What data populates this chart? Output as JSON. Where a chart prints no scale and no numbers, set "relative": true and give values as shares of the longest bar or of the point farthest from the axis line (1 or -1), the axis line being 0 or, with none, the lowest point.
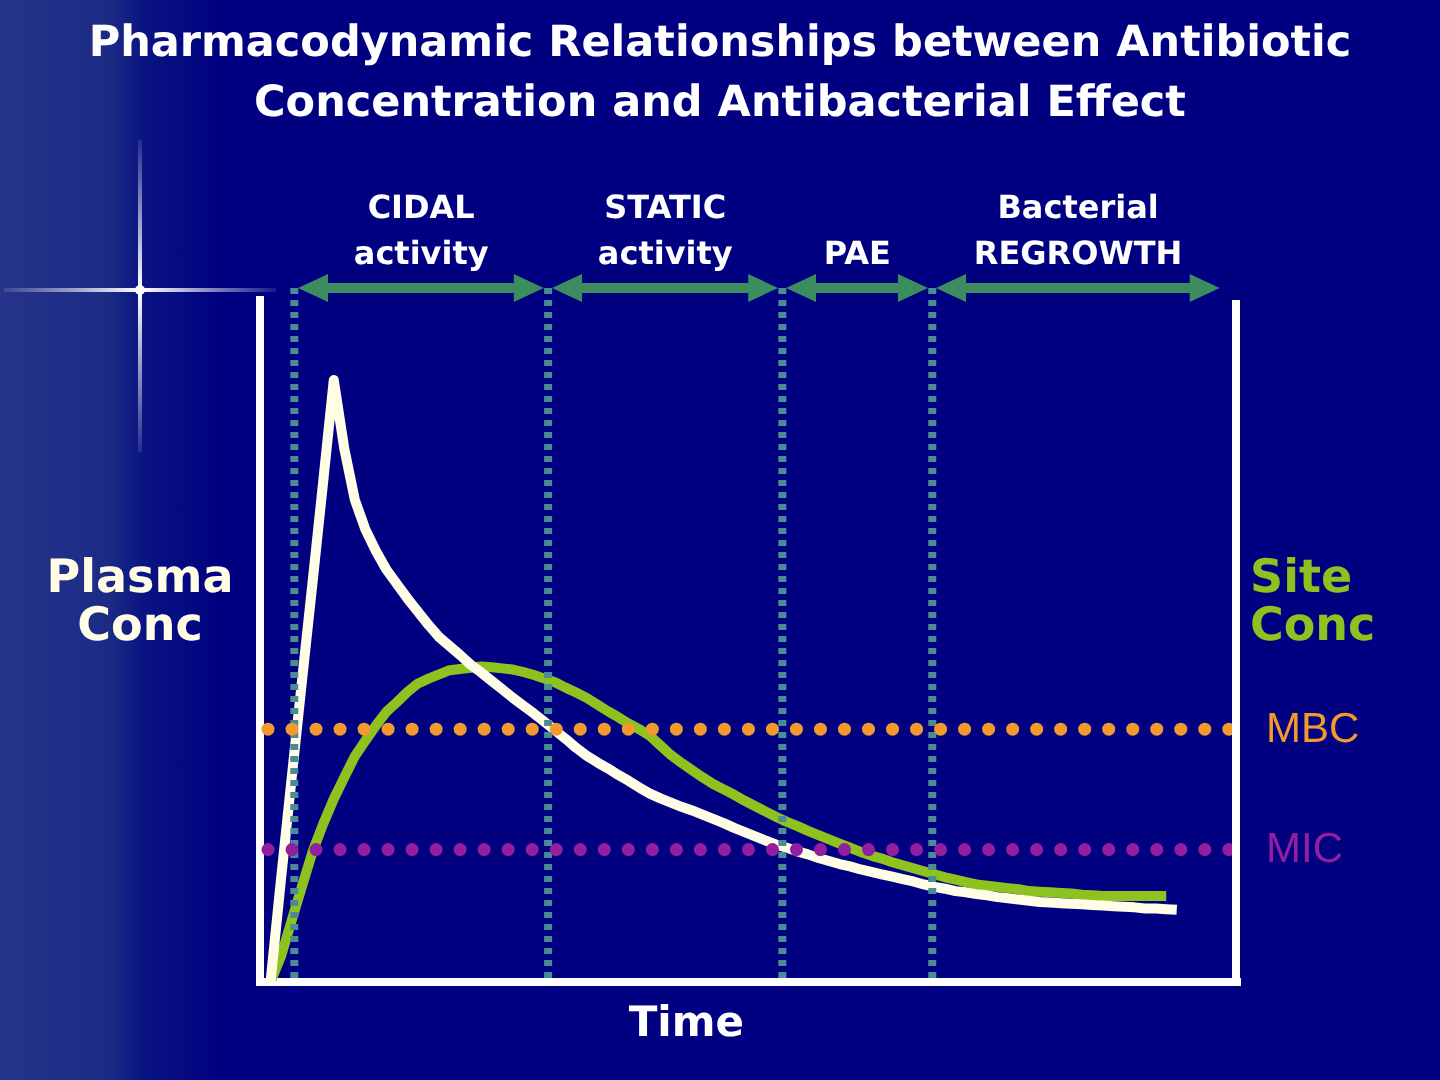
{
  "chart_data": {
    "type": "line",
    "title": "Pharmacodynamic Relationships between Antibiotic Concentration and Antibacterial Effect",
    "xlabel": "Time",
    "relative": true,
    "marker": "none",
    "categories": [
      null,
      null,
      null,
      null,
      null,
      null,
      null,
      null,
      null,
      null,
      null,
      null,
      null,
      null,
      null,
      null,
      null,
      null,
      null,
      null,
      null,
      null,
      null,
      null,
      null,
      null,
      null,
      null,
      null,
      null,
      null,
      null,
      null,
      null,
      null,
      null,
      null,
      null,
      null,
      null,
      null,
      null,
      null,
      null,
      null,
      null,
      null,
      null,
      null,
      null,
      null,
      null,
      null,
      null,
      null,
      null,
      null,
      null,
      null,
      null,
      null,
      null,
      null,
      null,
      null,
      null,
      null,
      null,
      null,
      null,
      null,
      null,
      null,
      null,
      null,
      null,
      null,
      null,
      null,
      null,
      null,
      null,
      null,
      null,
      null,
      null,
      null,
      null,
      null,
      null,
      null,
      null,
      null,
      null
    ],
    "series": [
      {
        "name": "Plasma Conc",
        "color": "#fffde6",
        "values": [
          null,
          0,
          0.172,
          0.338,
          0.503,
          0.666,
          0.832,
          1,
          0.886,
          0.801,
          0.752,
          0.716,
          0.685,
          0.661,
          0.637,
          0.615,
          0.593,
          0.573,
          0.558,
          0.543,
          0.527,
          0.514,
          0.5,
          0.486,
          0.472,
          0.459,
          0.446,
          0.432,
          0.418,
          0.404,
          0.389,
          0.376,
          0.365,
          0.355,
          0.344,
          0.334,
          0.323,
          0.313,
          0.305,
          0.298,
          0.291,
          0.285,
          0.278,
          0.271,
          0.264,
          0.256,
          0.249,
          0.242,
          0.235,
          0.228,
          0.223,
          0.217,
          0.212,
          0.206,
          0.201,
          0.196,
          0.192,
          0.187,
          0.183,
          0.179,
          0.175,
          0.171,
          0.167,
          0.162,
          0.158,
          0.155,
          0.151,
          0.149,
          0.146,
          0.144,
          0.141,
          0.139,
          0.137,
          0.135,
          0.133,
          0.132,
          0.131,
          0.13,
          0.129,
          0.128,
          0.127,
          0.126,
          0.125,
          0.124,
          0.122,
          0.122,
          0.121,
          0.12,
          null,
          null,
          null,
          null,
          null,
          null
        ]
      },
      {
        "name": "Site Conc",
        "color": "#8dc21f",
        "values": [
          null,
          0,
          0.043,
          0.102,
          0.16,
          0.217,
          0.263,
          0.304,
          0.34,
          0.375,
          0.401,
          0.426,
          0.449,
          0.465,
          0.482,
          0.496,
          0.504,
          0.511,
          0.518,
          0.52,
          0.522,
          0.524,
          0.523,
          0.521,
          0.519,
          0.515,
          0.51,
          0.504,
          0.498,
          0.489,
          0.481,
          0.472,
          0.461,
          0.45,
          0.44,
          0.429,
          0.42,
          0.409,
          0.393,
          0.377,
          0.364,
          0.352,
          0.34,
          0.329,
          0.32,
          0.311,
          0.301,
          0.292,
          0.283,
          0.274,
          0.266,
          0.259,
          0.251,
          0.244,
          0.237,
          0.23,
          0.223,
          0.216,
          0.21,
          0.205,
          0.199,
          0.194,
          0.189,
          0.184,
          0.179,
          0.174,
          0.17,
          0.166,
          0.162,
          0.16,
          0.158,
          0.156,
          0.154,
          0.151,
          0.15,
          0.149,
          0.148,
          0.147,
          0.145,
          0.144,
          0.143,
          0.143,
          0.143,
          0.143,
          0.143,
          0.143,
          0.143,
          null,
          null,
          null,
          null,
          null,
          null,
          null
        ]
      }
    ],
    "ref_lines": [
      {
        "axis": "y",
        "value": 0.42,
        "label": "MBC",
        "color": "#f29a2e",
        "line_style": "dotted"
      },
      {
        "axis": "y",
        "value": 0.22,
        "label": "MIC",
        "color": "#931ea0",
        "line_style": "dotted"
      }
    ],
    "annotations": [
      "CIDAL activity",
      "STATIC activity",
      "PAE",
      "Bacterial REGROWTH"
    ]
  }
}
